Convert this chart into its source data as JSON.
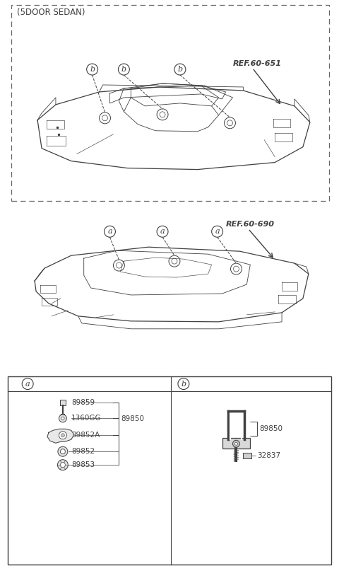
{
  "bg_color": "#ffffff",
  "line_color": "#404040",
  "title_5door": "(5DOOR SEDAN)",
  "ref1": "REF.60-651",
  "ref2": "REF.60-690",
  "figsize": [
    4.8,
    8.17
  ],
  "dpi": 100
}
